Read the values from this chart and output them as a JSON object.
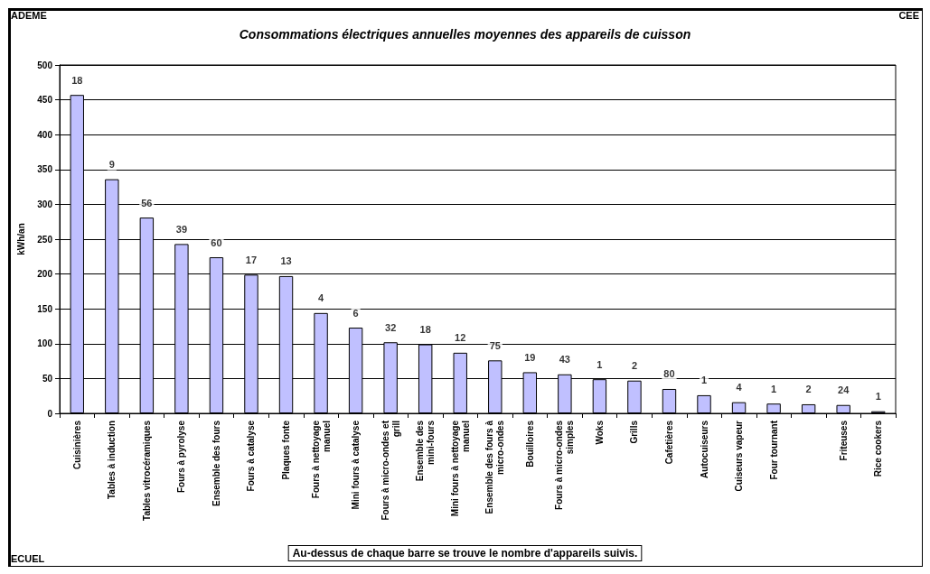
{
  "chart_data": {
    "type": "bar",
    "title": "Consommations électriques annuelles moyennes des appareils de cuisson",
    "ylabel": "kWh/an",
    "categories": [
      "Cuisinières",
      "Tables à induction",
      "Tables vitrocéramiques",
      "Fours à pyrolyse",
      "Ensemble des fours",
      "Fours à catalyse",
      "Plaques fonte",
      "Fours à nettoyage manuel",
      "Mini fours à catalyse",
      "Fours à micro-ondes et grill",
      "Ensemble des mini-fours",
      "Mini fours à nettoyage manuel",
      "Ensemble des fours à micro-ondes",
      "Bouilloires",
      "Fours à micro-ondes simples",
      "Woks",
      "Grills",
      "Cafetières",
      "Autocuiseurs",
      "Cuiseurs vapeur",
      "Four tournant",
      null,
      "Friteuses",
      "Rice cookers"
    ],
    "values": [
      457,
      336,
      281,
      243,
      224,
      199,
      197,
      144,
      123,
      102,
      99,
      87,
      76,
      59,
      56,
      49,
      47,
      35,
      26,
      16,
      14,
      13,
      12,
      3
    ],
    "color": "#c0c0ff",
    "ylim": [
      0,
      500
    ],
    "yticks": [
      0,
      50,
      100,
      150,
      200,
      250,
      300,
      350,
      400,
      450,
      500
    ],
    "grid": "y",
    "annotations": [
      "ADEME",
      "CEE",
      "ECUEL",
      "Au-dessus de chaque barre se trouve le nombre d'appareils suivis.",
      {
        "text": "18",
        "x": "Cuisinières",
        "y": 457
      },
      {
        "text": "9",
        "x": "Tables à induction",
        "y": 336
      },
      {
        "text": "56",
        "x": "Tables vitrocéramiques",
        "y": 281
      },
      {
        "text": "39",
        "x": "Fours à pyrolyse",
        "y": 243
      },
      {
        "text": "60",
        "x": "Ensemble des fours",
        "y": 224
      },
      {
        "text": "17",
        "x": "Fours à catalyse",
        "y": 199
      },
      {
        "text": "13",
        "x": "Plaques fonte",
        "y": 197
      },
      {
        "text": "4",
        "x": "Fours à nettoyage manuel",
        "y": 144
      },
      {
        "text": "6",
        "x": "Mini fours à catalyse",
        "y": 123
      },
      {
        "text": "32",
        "x": "Fours à micro-ondes et grill",
        "y": 102
      },
      {
        "text": "18",
        "x": "Ensemble des mini-fours",
        "y": 99
      },
      {
        "text": "12",
        "x": "Mini fours à nettoyage manuel",
        "y": 87
      },
      {
        "text": "75",
        "x": "Ensemble des fours à micro-ondes",
        "y": 76
      },
      {
        "text": "19",
        "x": "Bouilloires",
        "y": 59
      },
      {
        "text": "43",
        "x": "Fours à micro-ondes simples",
        "y": 56
      },
      {
        "text": "1",
        "x": "Woks",
        "y": 49
      },
      {
        "text": "2",
        "x": "Grills",
        "y": 47
      },
      {
        "text": "80",
        "x": "Cafetières",
        "y": 35
      },
      {
        "text": "1",
        "x": "Autocuiseurs",
        "y": 26
      },
      {
        "text": "4",
        "x": "Cuiseurs vapeur",
        "y": 16
      },
      {
        "text": "1",
        "x": "Four tournant",
        "y": 14
      },
      {
        "text": "2",
        "y": 13
      },
      {
        "text": "24",
        "x": "Friteuses",
        "y": 12
      },
      {
        "text": "1",
        "x": "Rice cookers",
        "y": 3
      }
    ]
  }
}
